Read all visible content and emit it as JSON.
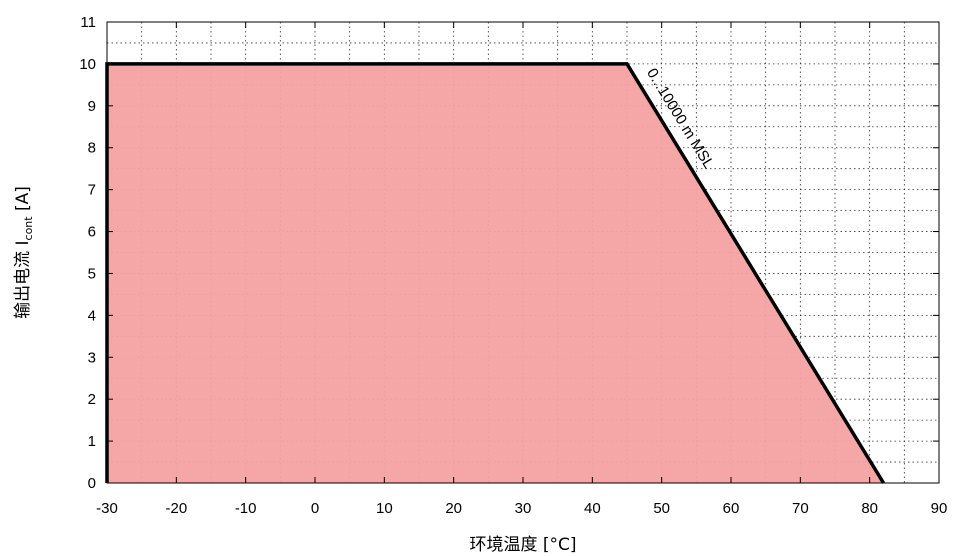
{
  "chart_data": {
    "type": "area",
    "title": "",
    "xlabel": "环境温度 [°C]",
    "ylabel": {
      "prefix": "输出电流 I",
      "subscript": "cont",
      "suffix": " [A]"
    },
    "xlim": [
      -30,
      90
    ],
    "ylim": [
      0,
      11
    ],
    "xticks": [
      -30,
      -20,
      -10,
      0,
      10,
      20,
      30,
      40,
      50,
      60,
      70,
      80,
      90
    ],
    "yticks": [
      0,
      1,
      2,
      3,
      4,
      5,
      6,
      7,
      8,
      9,
      10,
      11
    ],
    "grid": true,
    "grid_style": "dotted",
    "series": [
      {
        "x": [
          -30,
          45,
          82
        ],
        "y": [
          10,
          10,
          0
        ],
        "fill_color": "#f4a1a1",
        "line_color": "#000000"
      }
    ],
    "annotation": {
      "text": "0...10000 m MSL",
      "x": 45.5,
      "y": 9.85,
      "along_line": true
    }
  }
}
